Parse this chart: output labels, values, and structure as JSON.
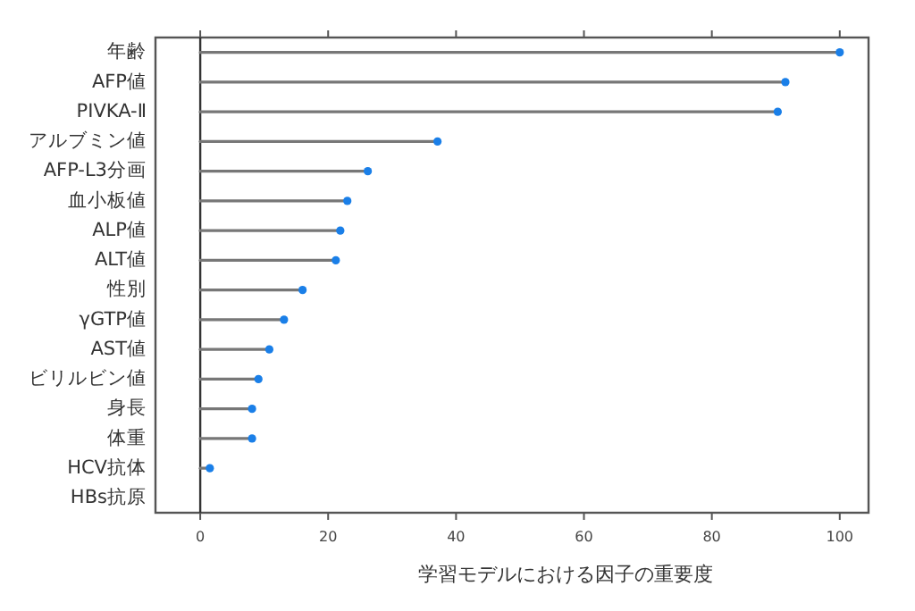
{
  "chart_data": {
    "type": "lollipop",
    "orientation": "horizontal",
    "xlabel": "学習モデルにおける因子の重要度",
    "categories": [
      "年齢",
      "AFP値",
      "PIVKA-Ⅱ",
      "アルブミン値",
      "AFP-L3分画",
      "血小板値",
      "ALP値",
      "ALT値",
      "性別",
      "γGTP値",
      "AST値",
      "ビリルビン値",
      "身長",
      "体重",
      "HCV抗体",
      "HBs抗原"
    ],
    "values": [
      100,
      91.5,
      90.3,
      37.1,
      26.2,
      23.0,
      21.9,
      21.2,
      16.0,
      13.1,
      10.8,
      9.1,
      8.1,
      8.1,
      1.5,
      null
    ],
    "color": "#1a7fe8",
    "marker": "circle",
    "xlim": [
      -7,
      104.5
    ],
    "xticks": [
      0,
      20,
      40,
      60,
      80,
      100
    ],
    "ref_lines": [
      {
        "axis": "x",
        "value": 0,
        "color": "#333333"
      }
    ]
  }
}
